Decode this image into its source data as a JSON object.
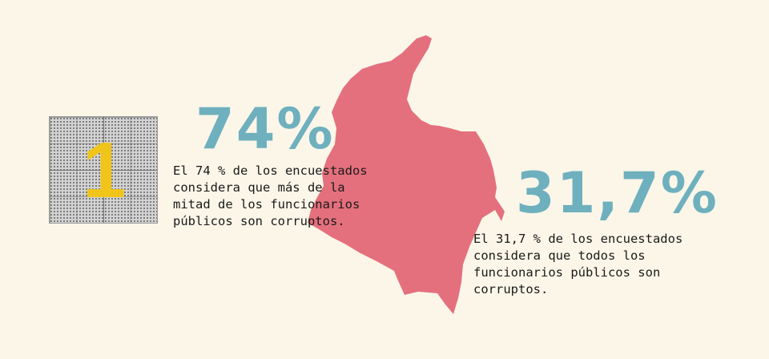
{
  "badge": {
    "number": "1"
  },
  "stats": [
    {
      "percent": "74%",
      "lines": [
        "El 74 % de los encuestados",
        "considera que más de la",
        "mitad de los funcionarios",
        "públicos son corruptos."
      ]
    },
    {
      "percent": "31,7%",
      "lines": [
        "El 31,7 % de los encuestados",
        "considera que todos los",
        "funcionarios públicos son",
        "corruptos."
      ]
    }
  ],
  "colors": {
    "background": "#fbf6e8",
    "map": "#e4707d",
    "percent": "#6fb0bf",
    "badge_number": "#f0c419"
  },
  "map": {
    "icon": "colombia-map"
  }
}
